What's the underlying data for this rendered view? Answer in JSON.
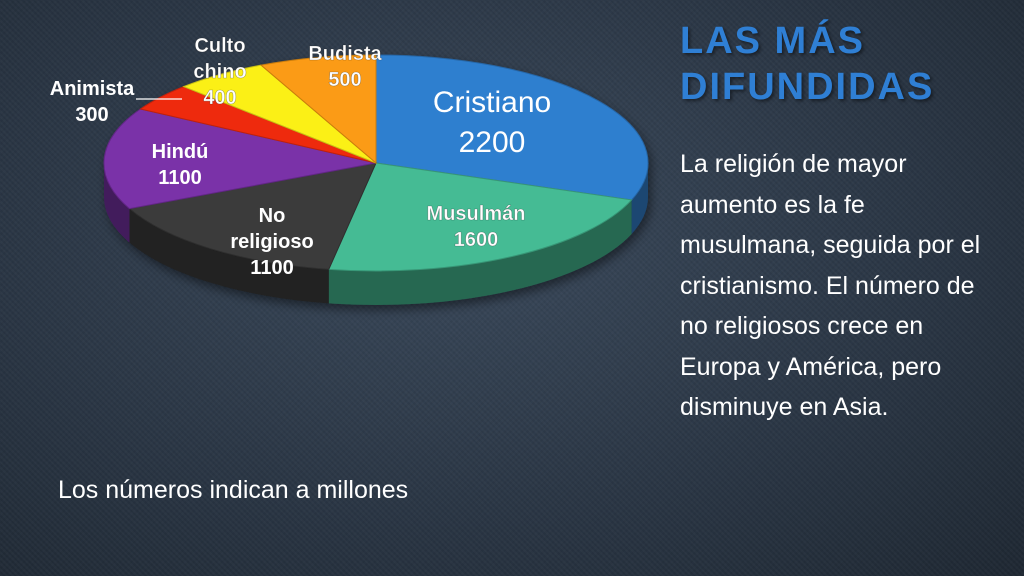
{
  "slide": {
    "title_lines": [
      "LAS MÁS",
      "DIFUNDIDAS"
    ],
    "description": "La religión de mayor aumento es la fe musulmana, seguida por el cristianismo. El número de no religiosos crece en Europa y  América, pero disminuye en Asia.",
    "footnote": "Los números indican a millones"
  },
  "chart_data": {
    "type": "pie",
    "title": "",
    "unit": "millones",
    "slices": [
      {
        "label": "Cristiano",
        "value": 2200,
        "color": "#2f7fcf"
      },
      {
        "label": "Musulmán",
        "value": 1600,
        "color": "#45bb94"
      },
      {
        "label": "No religioso",
        "value": 1100,
        "color": "#3b3b3b"
      },
      {
        "label": "Hindú",
        "value": 1100,
        "color": "#7a32a8"
      },
      {
        "label": "Animista",
        "value": 300,
        "color": "#ee2a10"
      },
      {
        "label": "Culto chino",
        "value": 400,
        "color": "#fbf017"
      },
      {
        "label": "Budista",
        "value": 500,
        "color": "#fb9b12"
      }
    ]
  }
}
